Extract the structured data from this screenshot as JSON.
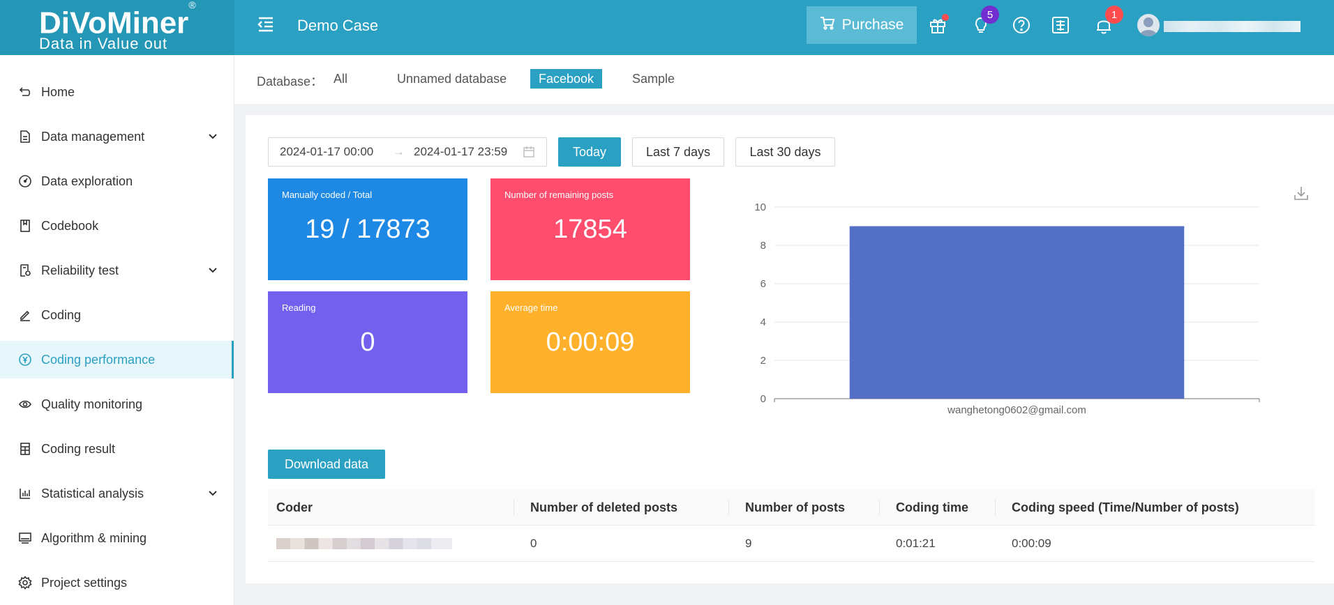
{
  "app": {
    "logo_main": "DiVoMiner",
    "logo_reg": "®",
    "logo_sub": "Data in  Value out",
    "project_name": "Demo Case",
    "purchase_label": "Purchase",
    "ideas_badge": "5",
    "notifications_badge": "1",
    "colors": {
      "brand": "#2aa0c2",
      "brand_dark": "#2496b6"
    }
  },
  "sidebar": {
    "items": [
      {
        "label": "Home",
        "icon": "home-return-icon"
      },
      {
        "label": "Data management",
        "icon": "document-icon",
        "expandable": true
      },
      {
        "label": "Data exploration",
        "icon": "dashboard-icon"
      },
      {
        "label": "Codebook",
        "icon": "book-icon"
      },
      {
        "label": "Reliability test",
        "icon": "test-icon",
        "expandable": true
      },
      {
        "label": "Coding",
        "icon": "pen-icon"
      },
      {
        "label": "Coding performance",
        "icon": "coin-icon",
        "active": true
      },
      {
        "label": "Quality monitoring",
        "icon": "eye-icon"
      },
      {
        "label": "Coding result",
        "icon": "sheet-icon"
      },
      {
        "label": "Statistical analysis",
        "icon": "bar-chart-icon",
        "expandable": true
      },
      {
        "label": "Algorithm & mining",
        "icon": "monitor-icon"
      },
      {
        "label": "Project settings",
        "icon": "gear-icon"
      }
    ]
  },
  "database_filter": {
    "label": "Database：",
    "options": [
      "All",
      "Unnamed database",
      "Facebook",
      "Sample"
    ],
    "selected": "Facebook"
  },
  "date_filter": {
    "start": "2024-01-17 00:00",
    "arrow": "→",
    "end": "2024-01-17 23:59",
    "buttons": [
      "Today",
      "Last 7 days",
      "Last 30 days"
    ],
    "selected": "Today"
  },
  "stats": [
    {
      "label": "Manually coded / Total",
      "value": "19 / 17873",
      "color": "#1e88e5"
    },
    {
      "label": "Number of remaining posts",
      "value": "17854",
      "color": "#ff4d6d"
    },
    {
      "label": "Reading",
      "value": "0",
      "color": "#7460ee"
    },
    {
      "label": "Average time",
      "value": "0:00:09",
      "color": "#ffb12b"
    }
  ],
  "chart_data": {
    "type": "bar",
    "categories": [
      "wanghetong0602@gmail.com"
    ],
    "values": [
      9
    ],
    "ylim": [
      0,
      10
    ],
    "yticks": [
      0,
      2,
      4,
      6,
      8,
      10
    ],
    "bar_color": "#5470c6",
    "grid": true
  },
  "download_label": "Download data",
  "table": {
    "columns": [
      "Coder",
      "Number of deleted posts",
      "Number of posts",
      "Coding time",
      "Coding speed (Time/Number of posts)"
    ],
    "rows": [
      {
        "coder": "",
        "deleted": "0",
        "posts": "9",
        "time": "0:01:21",
        "speed": "0:00:09"
      }
    ]
  }
}
